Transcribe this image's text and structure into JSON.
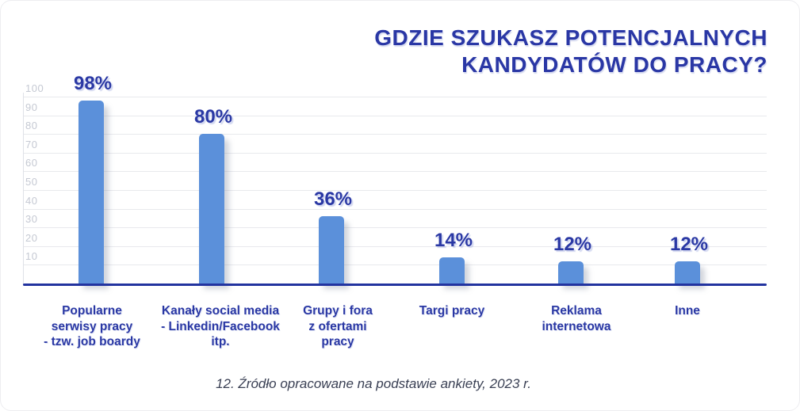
{
  "title": {
    "lines": [
      "GDZIE SZUKASZ POTENCJALNYCH",
      "KANDYDATÓW DO PRACY?"
    ]
  },
  "caption": "12. Źródło opracowane na podstawie ankiety, 2023 r.",
  "colors": {
    "bar_fill": "#5b90da",
    "heading_navy": "#2a37a5",
    "value_navy": "#2a38a4",
    "axis_line_navy": "#22339f",
    "gridline_gray": "#e8e9ed",
    "tick_gray": "#c5c9d3",
    "caption_slate": "#3a4054"
  },
  "chart_data": {
    "type": "bar",
    "title": "GDZIE SZUKASZ POTENCJALNYCH KANDYDATÓW DO PRACY?",
    "categories": [
      "Popularne serwisy pracy - tzw. job boardy",
      "Kanały social media - Linkedin/Facebook itp.",
      "Grupy i fora z ofertami pracy",
      "Targi pracy",
      "Reklama internetowa",
      "Inne"
    ],
    "category_lines": [
      [
        "Popularne",
        "serwisy pracy",
        "- tzw. job boardy"
      ],
      [
        "Kanały social media",
        "- Linkedin/Facebook",
        "itp."
      ],
      [
        "Grupy i fora",
        "z ofertami",
        "pracy"
      ],
      [
        "Targi pracy"
      ],
      [
        "Reklama",
        "internetowa"
      ],
      [
        "Inne"
      ]
    ],
    "values": [
      98,
      80,
      36,
      14,
      12,
      12
    ],
    "value_labels": [
      "98%",
      "80%",
      "36%",
      "14%",
      "12%",
      "12%"
    ],
    "unit": "%",
    "yticks": [
      100,
      90,
      80,
      70,
      60,
      50,
      40,
      30,
      20,
      10
    ],
    "ylim": [
      0,
      105
    ],
    "grid": true,
    "legend": false,
    "xlabel": "",
    "ylabel": "",
    "bar_color": "#5b90da",
    "source_note": "12. Źródło opracowane na podstawie ankiety, 2023 r."
  }
}
